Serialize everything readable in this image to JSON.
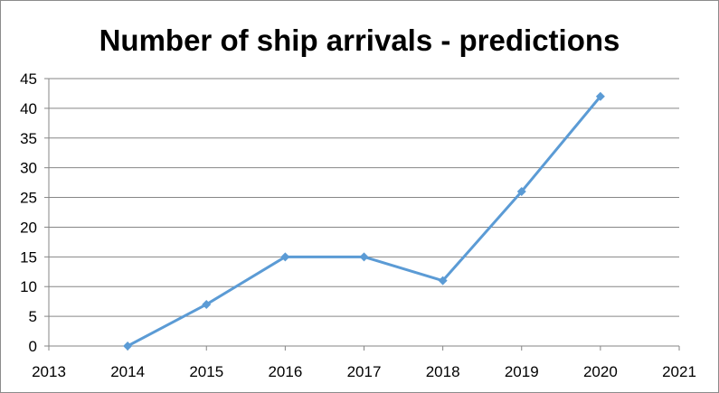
{
  "chart_data": {
    "type": "line",
    "title": "Number of ship arrivals - predictions",
    "xlabel": "",
    "ylabel": "",
    "x": [
      2014,
      2015,
      2016,
      2017,
      2018,
      2019,
      2020
    ],
    "series": [
      {
        "values": [
          0,
          7,
          15,
          15,
          11,
          26,
          42
        ]
      }
    ],
    "xlim": [
      2013,
      2021
    ],
    "ylim": [
      0,
      45
    ],
    "xticks": [
      "2013",
      "2014",
      "2015",
      "2016",
      "2017",
      "2018",
      "2019",
      "2020",
      "2021"
    ],
    "yticks": [
      "0",
      "5",
      "10",
      "15",
      "20",
      "25",
      "30",
      "35",
      "40",
      "45"
    ],
    "grid": "horizontal",
    "legend": "none",
    "colors": {
      "line": "#5b9bd5",
      "grid": "#868686",
      "axis": "#868686"
    }
  }
}
